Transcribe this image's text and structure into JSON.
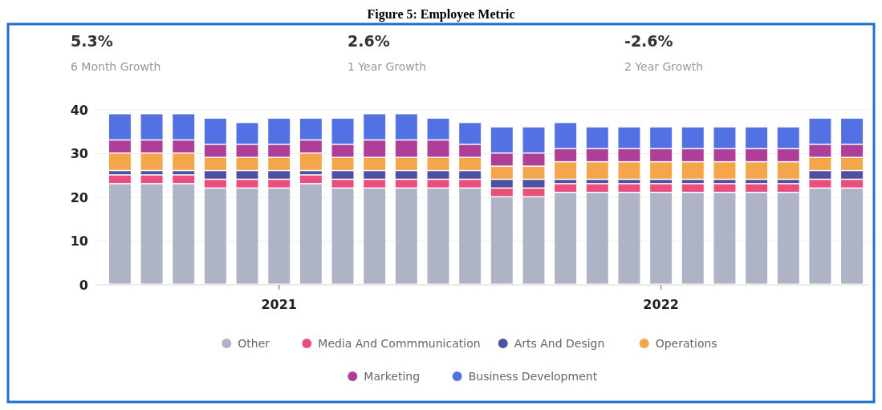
{
  "chart_data": {
    "type": "bar",
    "stacked": true,
    "title": "Figure 5: Employee Metric",
    "annotations": [
      "5.3%",
      "6 Month Growth",
      "2.6%",
      "1 Year Growth",
      "-2.6%",
      "2 Year Growth"
    ],
    "categories": [
      null,
      null,
      null,
      null,
      null,
      "2021",
      null,
      null,
      null,
      null,
      null,
      null,
      null,
      null,
      null,
      null,
      null,
      "2022",
      null,
      null,
      null,
      null,
      null,
      null
    ],
    "series": [
      {
        "name": "Other",
        "color": "#aeb4c6",
        "values": [
          23,
          23,
          23,
          22,
          22,
          22,
          23,
          22,
          22,
          22,
          22,
          22,
          20,
          20,
          21,
          21,
          21,
          21,
          21,
          21,
          21,
          21,
          22,
          22
        ]
      },
      {
        "name": "Media And Commmunication",
        "color": "#e94f7c",
        "values": [
          2,
          2,
          2,
          2,
          2,
          2,
          2,
          2,
          2,
          2,
          2,
          2,
          2,
          2,
          2,
          2,
          2,
          2,
          2,
          2,
          2,
          2,
          2,
          2
        ]
      },
      {
        "name": "Arts And Design",
        "color": "#4e519f",
        "values": [
          1,
          1,
          1,
          2,
          2,
          2,
          1,
          2,
          2,
          2,
          2,
          2,
          2,
          2,
          1,
          1,
          1,
          1,
          1,
          1,
          1,
          1,
          2,
          2
        ]
      },
      {
        "name": "Operations",
        "color": "#f5a54a",
        "values": [
          4,
          4,
          4,
          3,
          3,
          3,
          4,
          3,
          3,
          3,
          3,
          3,
          3,
          3,
          4,
          4,
          4,
          4,
          4,
          4,
          4,
          4,
          3,
          3
        ]
      },
      {
        "name": "Marketing",
        "color": "#ad3f98",
        "values": [
          3,
          3,
          3,
          3,
          3,
          3,
          3,
          3,
          4,
          4,
          4,
          3,
          3,
          3,
          3,
          3,
          3,
          3,
          3,
          3,
          3,
          3,
          3,
          3
        ]
      },
      {
        "name": "Business Development",
        "color": "#5471e4",
        "values": [
          6,
          6,
          6,
          6,
          5,
          6,
          5,
          6,
          6,
          6,
          5,
          5,
          6,
          6,
          6,
          5,
          5,
          5,
          5,
          5,
          5,
          5,
          6,
          6
        ]
      }
    ],
    "ylim": [
      0,
      40
    ],
    "yticks": [
      0,
      10,
      20,
      30,
      40
    ],
    "grid": "y",
    "legend": "bottom",
    "marker": "circle"
  }
}
